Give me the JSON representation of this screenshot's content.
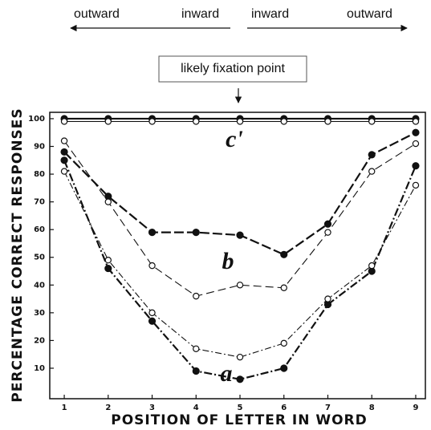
{
  "chart_data": {
    "type": "line",
    "top_labels": [
      "outward",
      "inward",
      "inward",
      "outward"
    ],
    "callout": "likely fixation point",
    "x_label": "POSITION OF LETTER IN WORD",
    "y_label": "PERCENTAGE CORRECT RESPONSES",
    "x": [
      1,
      2,
      3,
      4,
      5,
      6,
      7,
      8,
      9
    ],
    "xlim": [
      0.67,
      9.22
    ],
    "xticks": [
      1,
      2,
      3,
      4,
      5,
      6,
      7,
      8,
      9
    ],
    "ylim": [
      -1,
      102.3
    ],
    "yticks": [
      10,
      20,
      30,
      40,
      50,
      60,
      70,
      80,
      90,
      100
    ],
    "annotations": [
      "c'",
      "b",
      "a"
    ],
    "series": [
      {
        "color": "#111",
        "marker": "filled",
        "dash": "none",
        "values": [
          100,
          100,
          100,
          100,
          100,
          100,
          100,
          100,
          100
        ]
      },
      {
        "color": "#111",
        "marker": "open",
        "dash": "none",
        "values": [
          99,
          99,
          99,
          99,
          99,
          99,
          99,
          99,
          99
        ]
      },
      {
        "color": "#111",
        "marker": "filled",
        "dash": "12 4",
        "values": [
          88,
          72,
          59,
          59,
          58,
          51,
          62,
          87,
          95
        ]
      },
      {
        "color": "#111",
        "marker": "open",
        "dash": "10 5",
        "values": [
          92,
          70,
          47,
          36,
          40,
          39,
          59,
          81,
          91
        ]
      },
      {
        "color": "#111",
        "marker": "filled",
        "dash": "10 3 2 3",
        "values": [
          85,
          46,
          27,
          9,
          6,
          10,
          33,
          45,
          83
        ]
      },
      {
        "color": "#111",
        "marker": "open",
        "dash": "8 3 2 3",
        "values": [
          81,
          49,
          30,
          17,
          14,
          19,
          35,
          47,
          76
        ]
      }
    ]
  }
}
